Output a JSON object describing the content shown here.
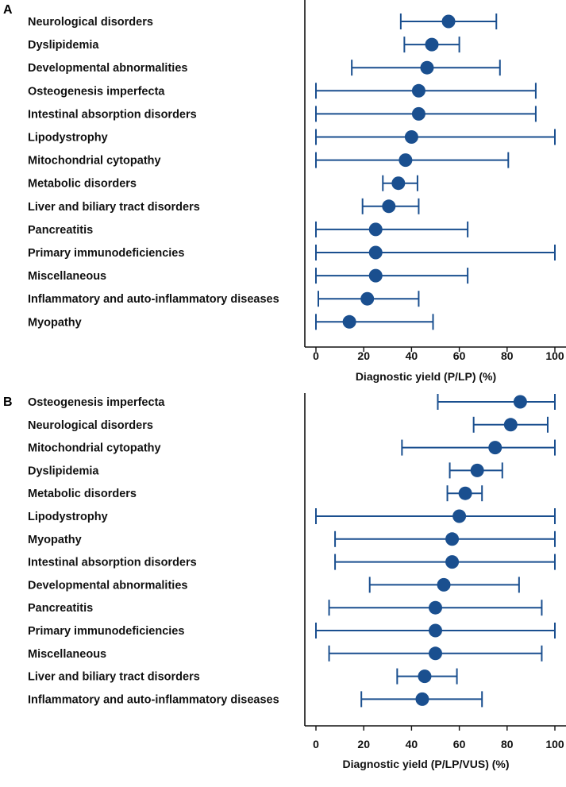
{
  "colors": {
    "marker": "#1a4f8f",
    "axis": "#111111"
  },
  "chart_data": [
    {
      "type": "scatter",
      "panel_label": "A",
      "xlabel": "Diagnostic yield (P/LP) (%)",
      "xlim": [
        0,
        100
      ],
      "xticks": [
        "0",
        "20",
        "40",
        "60",
        "80",
        "100"
      ],
      "categories": [
        "Neurological disorders",
        "Dyslipidemia",
        "Developmental abnormalities",
        "Osteogenesis imperfecta",
        "Intestinal absorption disorders",
        "Lipodystrophy",
        "Mitochondrial cytopathy",
        "Metabolic disorders",
        "Liver and biliary tract disorders",
        "Pancreatitis",
        "Primary immunodeficiencies",
        "Miscellaneous",
        "Inflammatory and auto-inflammatory diseases",
        "Myopathy"
      ],
      "values": [
        55.5,
        48.5,
        46.5,
        43,
        43,
        40,
        37.5,
        34.5,
        30.5,
        25,
        25,
        25,
        21.5,
        14
      ],
      "ci_low": [
        35.5,
        37,
        15,
        0,
        0,
        0,
        0,
        28,
        19.5,
        0,
        0,
        0,
        1,
        0
      ],
      "ci_high": [
        75.5,
        60,
        77,
        92,
        92,
        100,
        80.5,
        42.5,
        43,
        63.5,
        100,
        63.5,
        43,
        49
      ]
    },
    {
      "type": "scatter",
      "panel_label": "B",
      "xlabel": "Diagnostic yield (P/LP/VUS) (%)",
      "xlim": [
        0,
        100
      ],
      "xticks": [
        "0",
        "20",
        "40",
        "60",
        "80",
        "100"
      ],
      "categories": [
        "Osteogenesis imperfecta",
        "Neurological disorders",
        "Mitochondrial cytopathy",
        "Dyslipidemia",
        "Metabolic disorders",
        "Lipodystrophy",
        "Myopathy",
        "Intestinal absorption disorders",
        "Developmental abnormalities",
        "Pancreatitis",
        "Primary immunodeficiencies",
        "Miscellaneous",
        "Liver and biliary tract disorders",
        "Inflammatory and auto-inflammatory diseases"
      ],
      "values": [
        85.5,
        81.5,
        75,
        67.5,
        62.5,
        60,
        57,
        57,
        53.5,
        50,
        50,
        50,
        45.5,
        44.5
      ],
      "ci_low": [
        51,
        66,
        36,
        56,
        55,
        0,
        8,
        8,
        22.5,
        5.5,
        0,
        5.5,
        34,
        19
      ],
      "ci_high": [
        100,
        97,
        100,
        78,
        69.5,
        100,
        100,
        100,
        85,
        94.5,
        100,
        94.5,
        59,
        69.5
      ]
    }
  ]
}
